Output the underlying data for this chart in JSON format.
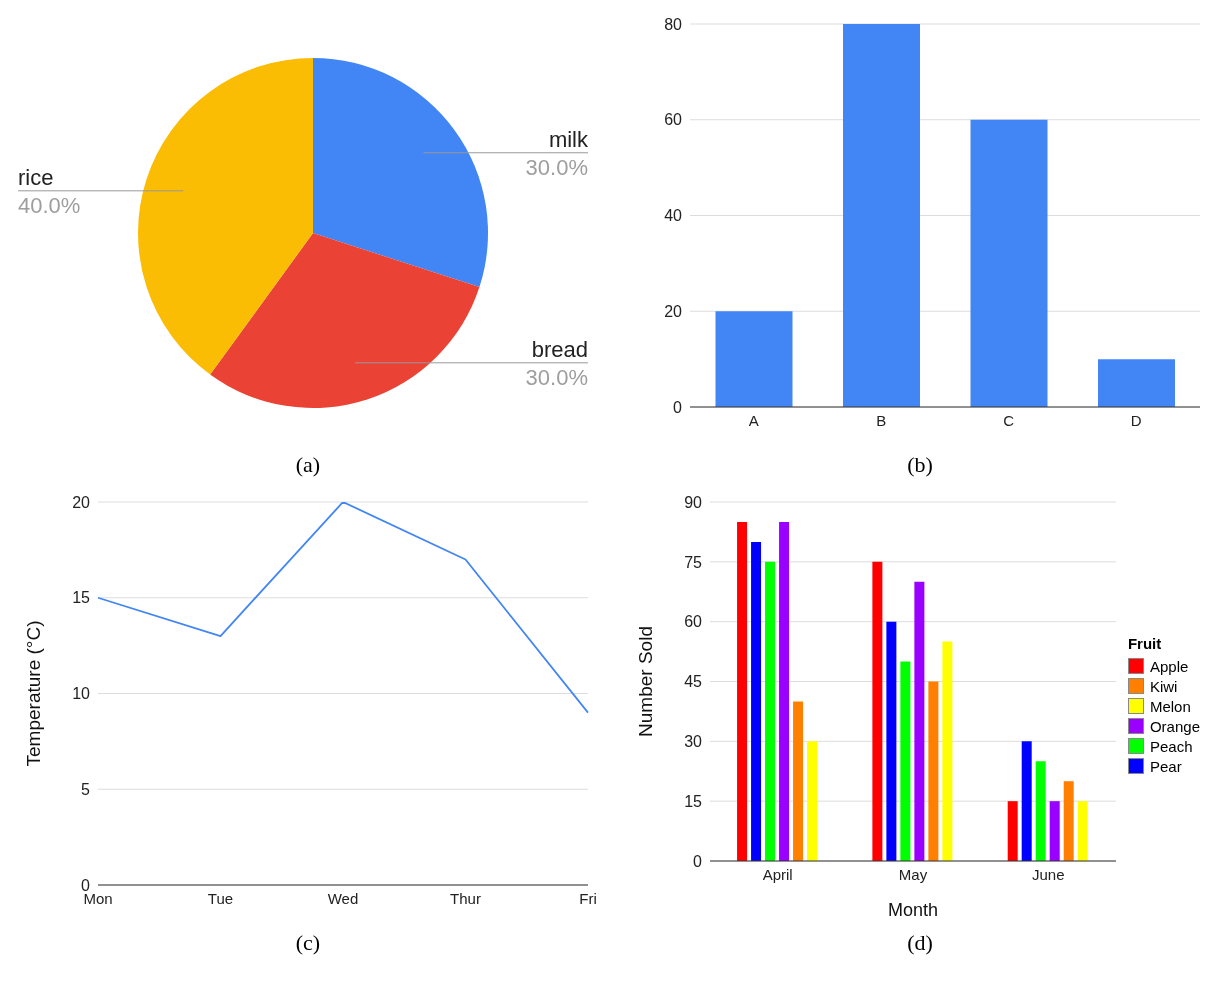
{
  "chart_data": [
    {
      "type": "pie",
      "title": "(a)",
      "categories": [
        "milk",
        "bread",
        "rice"
      ],
      "values": [
        30,
        30,
        40
      ],
      "colors": [
        "#4285f4",
        "#ea4335",
        "#fbbc04"
      ],
      "value_labels": [
        "30.0%",
        "30.0%",
        "40.0%"
      ],
      "legend": false
    },
    {
      "type": "bar",
      "title": "(b)",
      "categories": [
        "A",
        "B",
        "C",
        "D"
      ],
      "values": [
        20,
        80,
        60,
        10
      ],
      "color": "#4285f4",
      "ylim": [
        0,
        80
      ],
      "yticks": [
        0,
        20,
        40,
        60,
        80
      ],
      "grid": "y",
      "legend": false
    },
    {
      "type": "line",
      "title": "(c)",
      "categories": [
        "Mon",
        "Tue",
        "Wed",
        "Thur",
        "Fri"
      ],
      "values": [
        15,
        13,
        20,
        17,
        9
      ],
      "color": "#4285f4",
      "ylabel": "Temperature (°C)",
      "ylim": [
        0,
        20
      ],
      "yticks": [
        0,
        5,
        10,
        15,
        20
      ],
      "grid": "y",
      "legend": false,
      "marker": "none"
    },
    {
      "type": "bar",
      "title": "(d)",
      "xlabel": "Month",
      "ylabel": "Number Sold",
      "legend_title": "Fruit",
      "categories": [
        "April",
        "May",
        "June"
      ],
      "series": [
        {
          "name": "Apple",
          "color": "#ff0000",
          "values": [
            85,
            75,
            15
          ]
        },
        {
          "name": "Pear",
          "color": "#0000ff",
          "values": [
            80,
            60,
            30
          ]
        },
        {
          "name": "Peach",
          "color": "#00ff00",
          "values": [
            75,
            50,
            25
          ]
        },
        {
          "name": "Orange",
          "color": "#9900ff",
          "values": [
            85,
            70,
            15
          ]
        },
        {
          "name": "Kiwi",
          "color": "#ff8000",
          "values": [
            40,
            45,
            20
          ]
        },
        {
          "name": "Melon",
          "color": "#ffff00",
          "values": [
            30,
            55,
            15
          ]
        }
      ],
      "ylim": [
        0,
        90
      ],
      "yticks": [
        0,
        15,
        30,
        45,
        60,
        75,
        90
      ],
      "grid": "y",
      "legend": "right"
    }
  ]
}
